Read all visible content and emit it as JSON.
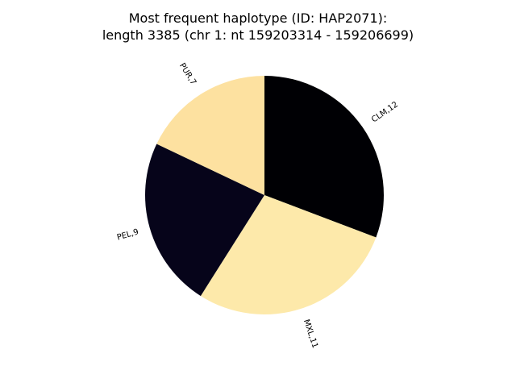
{
  "chart_data": {
    "type": "pie",
    "title": [
      "Most frequent haplotype (ID: HAP2071):",
      "length 3385 (chr 1: nt 159203314 - 159206699)"
    ],
    "start_angle_deg": 90,
    "direction": "clockwise",
    "slices": [
      {
        "label": "CLM,12",
        "value": 12,
        "color": "#000004"
      },
      {
        "label": "MXL,11",
        "value": 11,
        "color": "#fde9aa"
      },
      {
        "label": "PEL,9",
        "value": 9,
        "color": "#06041a"
      },
      {
        "label": "PUR,7",
        "value": 7,
        "color": "#fde1a0"
      }
    ],
    "xlabel": "",
    "ylabel": "",
    "legend": "none",
    "grid": false
  }
}
